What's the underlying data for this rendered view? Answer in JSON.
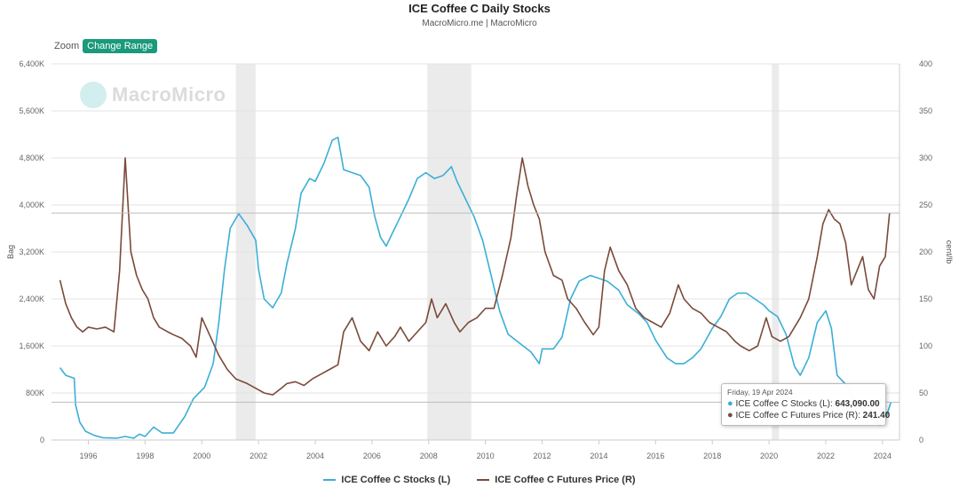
{
  "title": "ICE Coffee C Daily Stocks",
  "subtitle": "MacroMicro.me | MacroMicro",
  "zoom": {
    "label": "Zoom",
    "button_label": "Change Range"
  },
  "watermark": "MacroMicro",
  "colors": {
    "stocks": "#3bafd6",
    "price": "#7a4a3a",
    "recession": "#ebebeb",
    "accent": "#1a9a7a"
  },
  "tooltip": {
    "date": "Friday, 19 Apr 2024",
    "stocks_label": "ICE Coffee C Stocks (L): ",
    "stocks_value": "643,090.00",
    "price_label": "ICE Coffee C Futures Price (R): ",
    "price_value": "241.40"
  },
  "legend": {
    "stocks": "ICE Coffee C Stocks (L)",
    "price": "ICE Coffee C Futures Price (R)"
  },
  "chart_data": {
    "type": "line",
    "title": "ICE Coffee C Daily Stocks",
    "xlabel": "",
    "ylabel_left": "Bag",
    "ylabel_right": "cent/lb",
    "xlim": [
      1994.7,
      2024.6
    ],
    "ylim_left": [
      0,
      6400000
    ],
    "ylim_right": [
      0,
      400
    ],
    "x_ticks": [
      "1996",
      "1998",
      "2000",
      "2002",
      "2004",
      "2006",
      "2008",
      "2010",
      "2012",
      "2014",
      "2016",
      "2018",
      "2020",
      "2022",
      "2024"
    ],
    "y_ticks_left": [
      "0",
      "800K",
      "1,600K",
      "2,400K",
      "3,200K",
      "4,000K",
      "4,800K",
      "5,600K",
      "6,400K"
    ],
    "y_ticks_right": [
      "0",
      "50",
      "100",
      "150",
      "200",
      "250",
      "300",
      "350",
      "400"
    ],
    "recession_bands": [
      [
        2001.2,
        2001.9
      ],
      [
        2007.95,
        2009.5
      ],
      [
        2020.1,
        2020.35
      ]
    ],
    "crosshair": {
      "stocks": 643090,
      "price": 241.4
    },
    "series": [
      {
        "name": "ICE Coffee C Stocks (L)",
        "axis": "left",
        "points": [
          [
            1995.0,
            1230000
          ],
          [
            1995.2,
            1100000
          ],
          [
            1995.5,
            1050000
          ],
          [
            1995.55,
            600000
          ],
          [
            1995.7,
            300000
          ],
          [
            1995.9,
            150000
          ],
          [
            1996.2,
            80000
          ],
          [
            1996.5,
            40000
          ],
          [
            1997.0,
            30000
          ],
          [
            1997.3,
            60000
          ],
          [
            1997.6,
            30000
          ],
          [
            1997.8,
            100000
          ],
          [
            1998.0,
            60000
          ],
          [
            1998.3,
            220000
          ],
          [
            1998.6,
            120000
          ],
          [
            1999.0,
            120000
          ],
          [
            1999.4,
            400000
          ],
          [
            1999.7,
            700000
          ],
          [
            2000.1,
            900000
          ],
          [
            2000.4,
            1300000
          ],
          [
            2000.6,
            2000000
          ],
          [
            2000.8,
            2900000
          ],
          [
            2001.0,
            3600000
          ],
          [
            2001.3,
            3850000
          ],
          [
            2001.6,
            3650000
          ],
          [
            2001.9,
            3400000
          ],
          [
            2002.0,
            2900000
          ],
          [
            2002.2,
            2400000
          ],
          [
            2002.5,
            2250000
          ],
          [
            2002.8,
            2500000
          ],
          [
            2003.0,
            3000000
          ],
          [
            2003.3,
            3600000
          ],
          [
            2003.5,
            4200000
          ],
          [
            2003.8,
            4450000
          ],
          [
            2004.0,
            4400000
          ],
          [
            2004.3,
            4700000
          ],
          [
            2004.6,
            5100000
          ],
          [
            2004.8,
            5150000
          ],
          [
            2005.0,
            4600000
          ],
          [
            2005.3,
            4550000
          ],
          [
            2005.6,
            4500000
          ],
          [
            2005.9,
            4300000
          ],
          [
            2006.1,
            3800000
          ],
          [
            2006.3,
            3450000
          ],
          [
            2006.5,
            3300000
          ],
          [
            2006.8,
            3600000
          ],
          [
            2007.0,
            3800000
          ],
          [
            2007.3,
            4100000
          ],
          [
            2007.6,
            4450000
          ],
          [
            2007.9,
            4550000
          ],
          [
            2008.2,
            4450000
          ],
          [
            2008.5,
            4500000
          ],
          [
            2008.8,
            4650000
          ],
          [
            2009.0,
            4400000
          ],
          [
            2009.3,
            4100000
          ],
          [
            2009.6,
            3800000
          ],
          [
            2009.9,
            3400000
          ],
          [
            2010.2,
            2800000
          ],
          [
            2010.5,
            2200000
          ],
          [
            2010.8,
            1800000
          ],
          [
            2011.2,
            1650000
          ],
          [
            2011.6,
            1500000
          ],
          [
            2011.9,
            1300000
          ],
          [
            2012.0,
            1550000
          ],
          [
            2012.4,
            1550000
          ],
          [
            2012.7,
            1750000
          ],
          [
            2013.0,
            2400000
          ],
          [
            2013.3,
            2700000
          ],
          [
            2013.7,
            2800000
          ],
          [
            2014.0,
            2750000
          ],
          [
            2014.3,
            2700000
          ],
          [
            2014.7,
            2550000
          ],
          [
            2015.0,
            2300000
          ],
          [
            2015.4,
            2150000
          ],
          [
            2015.7,
            2000000
          ],
          [
            2016.0,
            1700000
          ],
          [
            2016.4,
            1400000
          ],
          [
            2016.7,
            1300000
          ],
          [
            2017.0,
            1300000
          ],
          [
            2017.3,
            1400000
          ],
          [
            2017.6,
            1550000
          ],
          [
            2018.0,
            1900000
          ],
          [
            2018.3,
            2100000
          ],
          [
            2018.6,
            2400000
          ],
          [
            2018.9,
            2500000
          ],
          [
            2019.2,
            2500000
          ],
          [
            2019.5,
            2400000
          ],
          [
            2019.8,
            2300000
          ],
          [
            2020.0,
            2200000
          ],
          [
            2020.3,
            2100000
          ],
          [
            2020.6,
            1800000
          ],
          [
            2020.9,
            1250000
          ],
          [
            2021.1,
            1100000
          ],
          [
            2021.4,
            1400000
          ],
          [
            2021.7,
            2000000
          ],
          [
            2022.0,
            2200000
          ],
          [
            2022.2,
            1900000
          ],
          [
            2022.4,
            1100000
          ],
          [
            2022.6,
            1000000
          ],
          [
            2022.8,
            900000
          ],
          [
            2023.0,
            700000
          ],
          [
            2023.3,
            500000
          ],
          [
            2023.6,
            350000
          ],
          [
            2023.9,
            250000
          ],
          [
            2024.1,
            350000
          ],
          [
            2024.3,
            643090
          ]
        ]
      },
      {
        "name": "ICE Coffee C Futures Price (R)",
        "axis": "right",
        "points": [
          [
            1995.0,
            170
          ],
          [
            1995.2,
            145
          ],
          [
            1995.4,
            130
          ],
          [
            1995.6,
            120
          ],
          [
            1995.8,
            115
          ],
          [
            1996.0,
            120
          ],
          [
            1996.3,
            118
          ],
          [
            1996.6,
            120
          ],
          [
            1996.9,
            115
          ],
          [
            1997.1,
            180
          ],
          [
            1997.3,
            300
          ],
          [
            1997.5,
            200
          ],
          [
            1997.7,
            175
          ],
          [
            1997.9,
            160
          ],
          [
            1998.1,
            150
          ],
          [
            1998.3,
            130
          ],
          [
            1998.5,
            120
          ],
          [
            1998.8,
            115
          ],
          [
            1999.0,
            112
          ],
          [
            1999.3,
            108
          ],
          [
            1999.6,
            100
          ],
          [
            1999.8,
            88
          ],
          [
            2000.0,
            130
          ],
          [
            2000.3,
            110
          ],
          [
            2000.6,
            90
          ],
          [
            2000.9,
            75
          ],
          [
            2001.2,
            65
          ],
          [
            2001.6,
            60
          ],
          [
            2001.9,
            55
          ],
          [
            2002.2,
            50
          ],
          [
            2002.5,
            48
          ],
          [
            2002.8,
            55
          ],
          [
            2003.0,
            60
          ],
          [
            2003.3,
            62
          ],
          [
            2003.6,
            58
          ],
          [
            2003.9,
            65
          ],
          [
            2004.2,
            70
          ],
          [
            2004.5,
            75
          ],
          [
            2004.8,
            80
          ],
          [
            2005.0,
            115
          ],
          [
            2005.3,
            130
          ],
          [
            2005.6,
            105
          ],
          [
            2005.9,
            95
          ],
          [
            2006.2,
            115
          ],
          [
            2006.5,
            100
          ],
          [
            2006.8,
            110
          ],
          [
            2007.0,
            120
          ],
          [
            2007.3,
            105
          ],
          [
            2007.6,
            115
          ],
          [
            2007.9,
            125
          ],
          [
            2008.1,
            150
          ],
          [
            2008.3,
            130
          ],
          [
            2008.6,
            145
          ],
          [
            2008.9,
            125
          ],
          [
            2009.1,
            115
          ],
          [
            2009.4,
            125
          ],
          [
            2009.7,
            130
          ],
          [
            2010.0,
            140
          ],
          [
            2010.3,
            140
          ],
          [
            2010.6,
            175
          ],
          [
            2010.9,
            215
          ],
          [
            2011.1,
            260
          ],
          [
            2011.3,
            300
          ],
          [
            2011.5,
            270
          ],
          [
            2011.7,
            250
          ],
          [
            2011.9,
            235
          ],
          [
            2012.1,
            200
          ],
          [
            2012.4,
            175
          ],
          [
            2012.7,
            170
          ],
          [
            2012.9,
            150
          ],
          [
            2013.2,
            140
          ],
          [
            2013.5,
            125
          ],
          [
            2013.8,
            112
          ],
          [
            2014.0,
            120
          ],
          [
            2014.2,
            180
          ],
          [
            2014.4,
            205
          ],
          [
            2014.7,
            180
          ],
          [
            2015.0,
            165
          ],
          [
            2015.3,
            140
          ],
          [
            2015.6,
            130
          ],
          [
            2015.9,
            125
          ],
          [
            2016.2,
            120
          ],
          [
            2016.5,
            135
          ],
          [
            2016.8,
            165
          ],
          [
            2017.0,
            150
          ],
          [
            2017.3,
            140
          ],
          [
            2017.6,
            135
          ],
          [
            2017.9,
            125
          ],
          [
            2018.2,
            120
          ],
          [
            2018.5,
            115
          ],
          [
            2018.8,
            105
          ],
          [
            2019.0,
            100
          ],
          [
            2019.3,
            95
          ],
          [
            2019.6,
            100
          ],
          [
            2019.9,
            130
          ],
          [
            2020.1,
            110
          ],
          [
            2020.4,
            105
          ],
          [
            2020.7,
            110
          ],
          [
            2020.9,
            120
          ],
          [
            2021.1,
            130
          ],
          [
            2021.4,
            150
          ],
          [
            2021.7,
            195
          ],
          [
            2021.9,
            230
          ],
          [
            2022.1,
            245
          ],
          [
            2022.3,
            235
          ],
          [
            2022.5,
            230
          ],
          [
            2022.7,
            210
          ],
          [
            2022.9,
            165
          ],
          [
            2023.1,
            180
          ],
          [
            2023.3,
            195
          ],
          [
            2023.5,
            160
          ],
          [
            2023.7,
            150
          ],
          [
            2023.9,
            185
          ],
          [
            2024.1,
            195
          ],
          [
            2024.25,
            241.4
          ]
        ]
      }
    ]
  }
}
